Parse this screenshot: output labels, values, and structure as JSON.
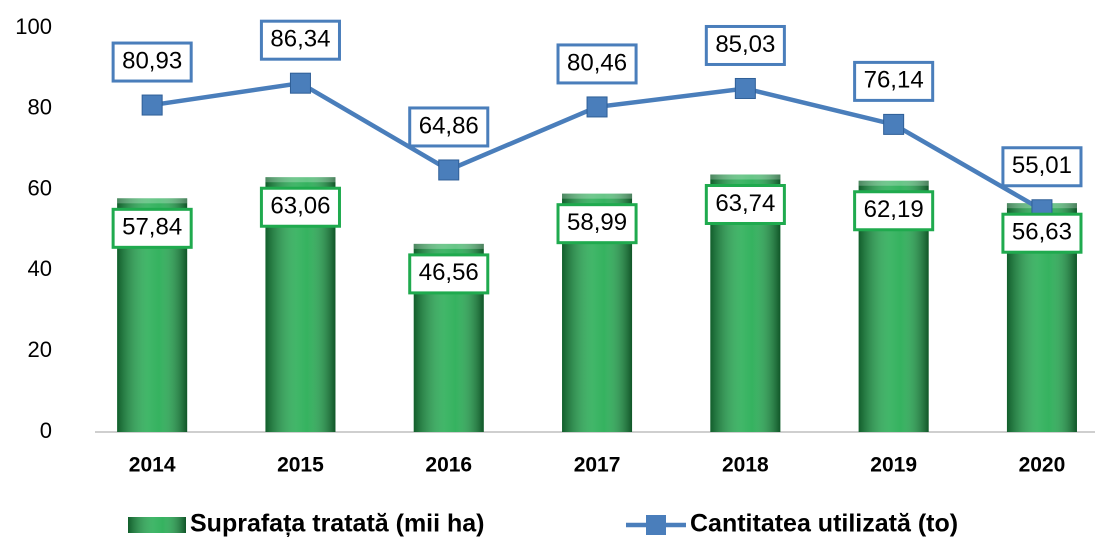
{
  "chart_data": {
    "type": "bar-line",
    "categories": [
      "2014",
      "2015",
      "2016",
      "2017",
      "2018",
      "2019",
      "2020"
    ],
    "series": [
      {
        "name": "Suprafața tratată (mii ha)",
        "type": "bar",
        "color": "#1faa4e",
        "values": [
          57.84,
          63.06,
          46.56,
          58.99,
          63.74,
          62.19,
          56.63
        ],
        "value_labels": [
          "57,84",
          "63,06",
          "46,56",
          "58,99",
          "63,74",
          "62,19",
          "56,63"
        ]
      },
      {
        "name": "Cantitatea utilizată (to)",
        "type": "line",
        "color": "#4a7ebb",
        "values": [
          80.93,
          86.34,
          64.86,
          80.46,
          85.03,
          76.14,
          55.01
        ],
        "value_labels": [
          "80,93",
          "86,34",
          "64,86",
          "80,46",
          "85,03",
          "76,14",
          "55,01"
        ]
      }
    ],
    "ylim": [
      0,
      100
    ],
    "yticks": [
      0,
      20,
      40,
      60,
      80,
      100
    ],
    "grid": false,
    "legend": "bottom"
  }
}
